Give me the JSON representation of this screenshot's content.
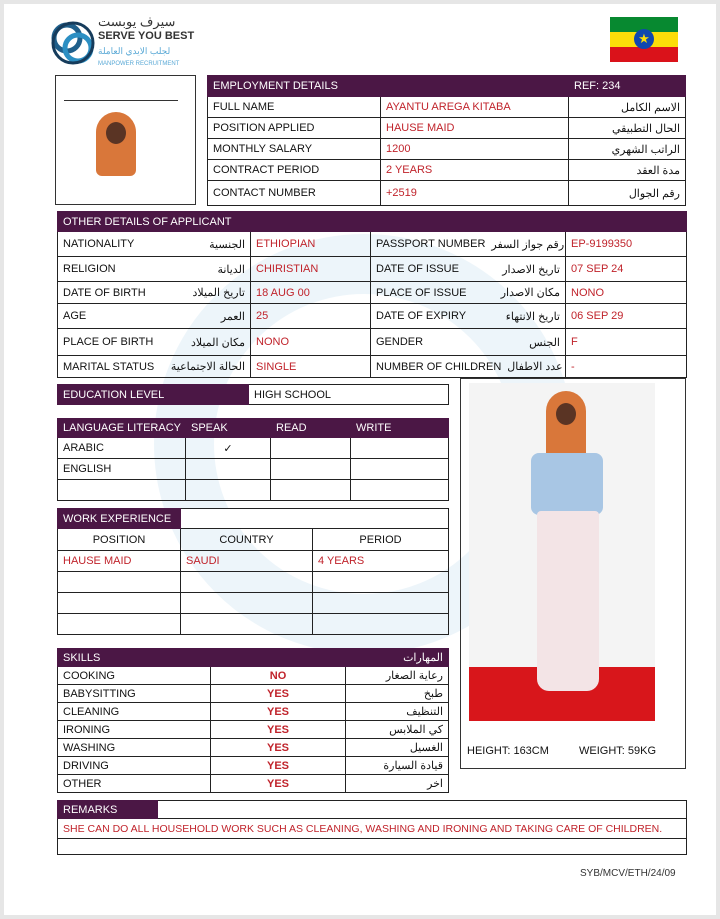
{
  "logo": {
    "arabic": "سيرف يوبست",
    "name": "SERVE YOU BEST",
    "arabic_sub": "لجلب الايدي العاملة",
    "sub": "MANPOWER RECRUITMENT"
  },
  "flag": {
    "country": "Ethiopia",
    "colors": [
      "#078930",
      "#fcdd09",
      "#da121a",
      "#0f47af"
    ]
  },
  "employment": {
    "title": "EMPLOYMENT DETAILS",
    "ref": "REF:  234",
    "rows": [
      {
        "label": "FULL NAME",
        "value": "AYANTU  AREGA  KITABA",
        "ar": "الاسم الكامل"
      },
      {
        "label": "POSITION APPLIED",
        "value": "HAUSE MAID",
        "ar": "الحال التطبيقي"
      },
      {
        "label": "MONTHLY SALARY",
        "value": "1200",
        "ar": "الراتب الشهري"
      },
      {
        "label": "CONTRACT PERIOD",
        "value": "2 YEARS",
        "ar": "مدة العقد"
      },
      {
        "label": "CONTACT NUMBER",
        "value": "+2519",
        "ar": "رقم الجوال"
      }
    ]
  },
  "other": {
    "title": "OTHER DETAILS OF APPLICANT",
    "rows": [
      {
        "l1": "NATIONALITY",
        "a1": "الجنسية",
        "v1": "ETHIOPIAN",
        "l2": "PASSPORT NUMBER",
        "a2": "رقم جواز السفر",
        "v2": "EP-9199350"
      },
      {
        "l1": "RELIGION",
        "a1": "الديانة",
        "v1": "CHIRISTIAN",
        "l2": "DATE OF ISSUE",
        "a2": "تاريخ الاصدار",
        "v2": "07  SEP  24"
      },
      {
        "l1": "DATE OF BIRTH",
        "a1": "تاريخ الميلاد",
        "v1": "18  AUG  00",
        "l2": "PLACE OF ISSUE",
        "a2": "مكان الاصدار",
        "v2": "NONO"
      },
      {
        "l1": "AGE",
        "a1": "العمر",
        "v1": "25",
        "l2": "DATE OF EXPIRY",
        "a2": "تاريخ الانتهاء",
        "v2": "06  SEP  29"
      },
      {
        "l1": "PLACE OF BIRTH",
        "a1": "مكان الميلاد",
        "v1": "NONO",
        "l2": "GENDER",
        "a2": "الجنس",
        "v2": "F"
      },
      {
        "l1": "MARITAL STATUS",
        "a1": "الحالة الاجتماعية",
        "v1": "SINGLE",
        "l2": "NUMBER OF CHILDREN",
        "a2": "عدد الاطفال",
        "v2": "-"
      }
    ]
  },
  "education": {
    "label": "EDUCATION LEVEL",
    "value": "HIGH   SCHOOL"
  },
  "language": {
    "headers": [
      "LANGUAGE LITERACY",
      "SPEAK",
      "READ",
      "WRITE"
    ],
    "rows": [
      [
        "ARABIC",
        "✓",
        "",
        ""
      ],
      [
        "ENGLISH",
        "",
        "",
        ""
      ],
      [
        "",
        "",
        "",
        ""
      ]
    ]
  },
  "work": {
    "title": "WORK EXPERIENCE",
    "headers": [
      "POSITION",
      "COUNTRY",
      "PERIOD"
    ],
    "rows": [
      [
        "HAUSE MAID",
        "SAUDI",
        "4  YEARS"
      ],
      [
        "",
        "",
        ""
      ],
      [
        "",
        "",
        ""
      ],
      [
        "",
        "",
        ""
      ]
    ]
  },
  "skills": {
    "title": "SKILLS",
    "title_ar": "المهارات",
    "rows": [
      {
        "label": "COOKING",
        "value": "NO",
        "ar": "رعاية الصغار"
      },
      {
        "label": "BABYSITTING",
        "value": "YES",
        "ar": "طبخ"
      },
      {
        "label": "CLEANING",
        "value": "YES",
        "ar": "التنظيف"
      },
      {
        "label": "IRONING",
        "value": "YES",
        "ar": "كي الملابس"
      },
      {
        "label": "WASHING",
        "value": "YES",
        "ar": "الغسيل"
      },
      {
        "label": "DRIVING",
        "value": "YES",
        "ar": "قيادة السيارة"
      },
      {
        "label": "OTHER",
        "value": "YES",
        "ar": "اخر"
      }
    ]
  },
  "body": {
    "height": "HEIGHT:   163CM",
    "weight": "WEIGHT:   59KG"
  },
  "remarks": {
    "title": "REMARKS",
    "text": "SHE CAN DO ALL HOUSEHOLD WORK SUCH AS CLEANING, WASHING AND IRONING AND TAKING CARE OF CHILDREN."
  },
  "footer": {
    "code": "SYB/MCV/ETH/24/09"
  }
}
